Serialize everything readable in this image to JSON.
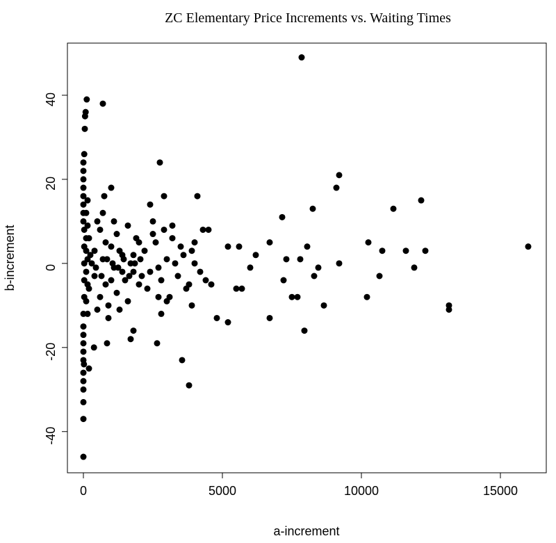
{
  "chart_data": {
    "type": "scatter",
    "title": "ZC Elementary Price Increments vs. Waiting Times",
    "x_label": "a-increment",
    "y_label": "b-increment",
    "color": "#000000",
    "xlim": [
      -575,
      16650
    ],
    "ylim": [
      -49.8,
      52.4
    ],
    "xticks": [
      0,
      5000,
      10000,
      15000
    ],
    "yticks": [
      -40,
      -20,
      0,
      20,
      40
    ],
    "x": [
      7850,
      700,
      120,
      80,
      60,
      50,
      30,
      2750,
      9200,
      9100,
      12150,
      11150,
      8250,
      7150,
      4100,
      2900,
      2400,
      1000,
      750,
      16000,
      12300,
      11600,
      10750,
      10250,
      11900,
      10650,
      10200,
      13150,
      13150,
      8650,
      7950,
      7800,
      8050,
      9200,
      8450,
      8300,
      6700,
      6700,
      7300,
      7700,
      7500,
      7200,
      3550,
      3800,
      2650,
      1800,
      1700,
      850,
      380,
      200,
      0,
      0,
      0,
      0,
      0,
      20,
      5200,
      4800,
      2800,
      6200,
      6000,
      5700,
      5500,
      5200,
      5600,
      4300,
      4500,
      4000,
      3900,
      4600,
      0,
      0,
      0,
      0,
      0,
      0,
      0,
      0,
      0,
      0,
      0,
      0,
      0,
      0,
      0,
      30,
      30,
      30,
      30,
      30,
      200,
      400,
      600,
      800,
      1000,
      1200,
      1400,
      1600,
      1800,
      2000,
      200,
      400,
      600,
      800,
      1000,
      1200,
      1400,
      1600,
      1800,
      2000,
      300,
      500,
      700,
      900,
      1100,
      1300,
      1500,
      1700,
      1900,
      2100,
      2200,
      2400,
      2600,
      2800,
      3000,
      3200,
      3400,
      3600,
      3800,
      4000,
      2300,
      2500,
      2700,
      2900,
      3100,
      3300,
      3500,
      3700,
      3900,
      4200,
      100,
      100,
      100,
      100,
      100,
      150,
      150,
      150,
      150,
      150,
      500,
      700,
      900,
      1100,
      1300,
      2500,
      2700,
      3200,
      3000,
      4400,
      250,
      450,
      650,
      850,
      1050,
      1250,
      1450,
      1650,
      1850,
      2050
    ],
    "values": [
      49,
      38,
      39,
      36,
      35,
      32,
      26,
      24,
      21,
      18,
      15,
      13,
      13,
      11,
      16,
      16,
      14,
      18,
      16,
      4,
      3,
      3,
      3,
      5,
      -1,
      -3,
      -8,
      -10,
      -11,
      -10,
      -16,
      1,
      4,
      0,
      -1,
      -3,
      5,
      -13,
      1,
      -8,
      -8,
      -4,
      -23,
      -29,
      -19,
      -16,
      -18,
      -19,
      -20,
      -25,
      -46,
      -37,
      -33,
      -30,
      -28,
      -24,
      -14,
      -13,
      -12,
      2,
      -1,
      -6,
      -6,
      4,
      4,
      8,
      8,
      5,
      -10,
      -5,
      24,
      22,
      20,
      18,
      16,
      14,
      12,
      10,
      -12,
      -15,
      -17,
      -19,
      -21,
      -23,
      -26,
      8,
      4,
      0,
      -4,
      -8,
      6,
      -3,
      8,
      -5,
      4,
      -7,
      2,
      9,
      -2,
      5,
      -6,
      3,
      -8,
      5,
      -4,
      7,
      -2,
      -9,
      2,
      -5,
      0,
      10,
      1,
      -10,
      -1,
      3,
      -4,
      0,
      6,
      -3,
      3,
      -2,
      5,
      -4,
      1,
      6,
      -3,
      2,
      -5,
      0,
      -6,
      7,
      -1,
      8,
      -8,
      0,
      4,
      -6,
      3,
      -2,
      12,
      6,
      -2,
      -9,
      3,
      -12,
      9,
      1,
      -5,
      15,
      -11,
      12,
      -13,
      10,
      -11,
      10,
      -8,
      9,
      -9,
      -4,
      2,
      -1,
      -3,
      1,
      0,
      -1,
      1,
      -3,
      0,
      1
    ]
  }
}
